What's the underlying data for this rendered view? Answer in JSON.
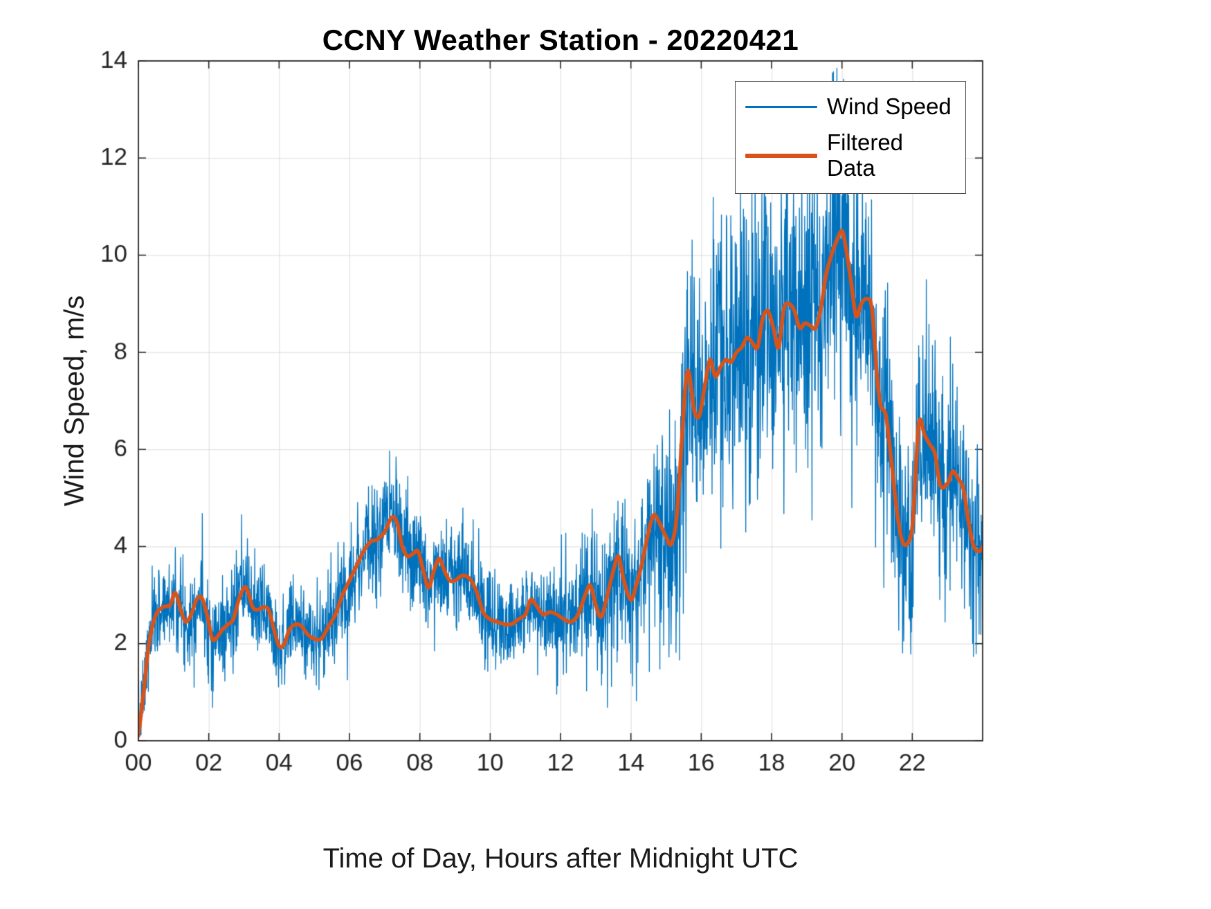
{
  "figure": {
    "title": "CCNY Weather Station - 20220421",
    "xlabel": "Time of Day, Hours after Midnight UTC",
    "ylabel": "Wind Speed, m/s"
  },
  "chart_data": {
    "type": "line",
    "title": "CCNY Weather Station - 20220421",
    "xlabel": "Time of Day, Hours after Midnight UTC",
    "ylabel": "Wind Speed, m/s",
    "xlim": [
      0,
      24
    ],
    "ylim": [
      0,
      14
    ],
    "grid": true,
    "legend_position": "northeast-inside",
    "xticks": {
      "values": [
        0,
        2,
        4,
        6,
        8,
        10,
        12,
        14,
        16,
        18,
        20,
        22
      ],
      "labels": [
        "00",
        "02",
        "04",
        "06",
        "08",
        "10",
        "12",
        "14",
        "16",
        "18",
        "20",
        "22"
      ]
    },
    "yticks": {
      "values": [
        0,
        2,
        4,
        6,
        8,
        10,
        12,
        14
      ],
      "labels": [
        "0",
        "2",
        "4",
        "6",
        "8",
        "10",
        "12",
        "14"
      ]
    },
    "series": [
      {
        "name": "Wind Speed",
        "color": "#0072BD",
        "line_width": 1.3,
        "style": "raw-noisy",
        "derivation": "filtered baseline plus gaussian noise envelope read from plot",
        "sample_interval_hours": 0.008333,
        "seed": 7,
        "noise_sd_keypoints": {
          "t": [
            0,
            1,
            2,
            3,
            4,
            5,
            6,
            7,
            8,
            9,
            10,
            11,
            12,
            12.8,
            13.5,
            14,
            14.7,
            15.3,
            15.7,
            16.5,
            17.5,
            18.5,
            19.5,
            20.5,
            21,
            21.5,
            22,
            23,
            24
          ],
          "sd": [
            0.4,
            0.5,
            0.55,
            0.5,
            0.42,
            0.45,
            0.55,
            0.55,
            0.55,
            0.5,
            0.45,
            0.5,
            0.5,
            0.65,
            0.8,
            0.9,
            1.0,
            1.2,
            1.4,
            1.5,
            1.6,
            1.5,
            1.7,
            1.5,
            1.3,
            1.1,
            1.2,
            1.1,
            0.9
          ]
        },
        "value_clip": [
          0.12,
          13.85
        ]
      },
      {
        "name": "Filtered Data",
        "color": "#D95319",
        "line_width": 5.5,
        "style": "smooth",
        "x": [
          0,
          0.15,
          0.3,
          0.5,
          0.7,
          0.9,
          1.05,
          1.2,
          1.35,
          1.5,
          1.65,
          1.8,
          1.95,
          2.1,
          2.25,
          2.4,
          2.55,
          2.7,
          2.85,
          3.0,
          3.1,
          3.25,
          3.4,
          3.55,
          3.7,
          3.85,
          4.0,
          4.15,
          4.3,
          4.5,
          4.65,
          4.8,
          5.0,
          5.2,
          5.4,
          5.6,
          5.8,
          6.0,
          6.2,
          6.4,
          6.6,
          6.8,
          7.0,
          7.2,
          7.35,
          7.5,
          7.65,
          7.8,
          7.95,
          8.1,
          8.25,
          8.4,
          8.55,
          8.7,
          8.85,
          9.0,
          9.2,
          9.4,
          9.6,
          9.8,
          10.0,
          10.2,
          10.4,
          10.6,
          10.8,
          11.0,
          11.15,
          11.3,
          11.5,
          11.7,
          11.9,
          12.1,
          12.3,
          12.5,
          12.7,
          12.85,
          13.0,
          13.15,
          13.3,
          13.5,
          13.65,
          13.8,
          14.0,
          14.15,
          14.3,
          14.5,
          14.65,
          14.8,
          15.0,
          15.15,
          15.3,
          15.45,
          15.55,
          15.65,
          15.8,
          15.95,
          16.1,
          16.25,
          16.4,
          16.55,
          16.7,
          16.85,
          17.0,
          17.15,
          17.3,
          17.45,
          17.6,
          17.75,
          17.9,
          18.05,
          18.2,
          18.35,
          18.5,
          18.65,
          18.8,
          18.95,
          19.1,
          19.25,
          19.4,
          19.55,
          19.7,
          19.85,
          20.0,
          20.1,
          20.25,
          20.4,
          20.55,
          20.7,
          20.85,
          21.0,
          21.1,
          21.25,
          21.4,
          21.55,
          21.7,
          21.85,
          22.0,
          22.1,
          22.2,
          22.35,
          22.5,
          22.65,
          22.8,
          23.0,
          23.15,
          23.3,
          23.45,
          23.6,
          23.75,
          23.9,
          24.0
        ],
        "y": [
          0.1,
          1.0,
          2.0,
          2.6,
          2.75,
          2.8,
          3.05,
          2.7,
          2.45,
          2.6,
          2.9,
          2.95,
          2.6,
          2.1,
          2.15,
          2.3,
          2.4,
          2.5,
          2.9,
          3.15,
          3.1,
          2.75,
          2.7,
          2.75,
          2.7,
          2.3,
          1.95,
          2.0,
          2.3,
          2.4,
          2.35,
          2.2,
          2.1,
          2.1,
          2.35,
          2.6,
          3.0,
          3.3,
          3.6,
          3.9,
          4.1,
          4.15,
          4.3,
          4.6,
          4.5,
          4.0,
          3.8,
          3.85,
          3.9,
          3.5,
          3.15,
          3.5,
          3.75,
          3.5,
          3.3,
          3.3,
          3.4,
          3.35,
          3.1,
          2.65,
          2.5,
          2.45,
          2.4,
          2.4,
          2.5,
          2.6,
          2.9,
          2.8,
          2.6,
          2.65,
          2.6,
          2.5,
          2.45,
          2.6,
          3.0,
          3.2,
          2.8,
          2.55,
          2.9,
          3.5,
          3.8,
          3.3,
          2.9,
          3.2,
          3.6,
          4.3,
          4.65,
          4.5,
          4.2,
          4.05,
          4.6,
          6.2,
          7.3,
          7.6,
          6.8,
          6.7,
          7.3,
          7.85,
          7.5,
          7.7,
          7.85,
          7.8,
          8.0,
          8.1,
          8.3,
          8.2,
          8.1,
          8.7,
          8.85,
          8.5,
          8.1,
          8.9,
          9.0,
          8.85,
          8.5,
          8.6,
          8.55,
          8.5,
          8.9,
          9.6,
          10.0,
          10.3,
          10.5,
          10.2,
          9.5,
          8.75,
          9.0,
          9.1,
          8.9,
          7.5,
          6.9,
          6.7,
          5.8,
          4.8,
          4.15,
          4.05,
          4.4,
          5.6,
          6.6,
          6.3,
          6.1,
          5.9,
          5.25,
          5.3,
          5.55,
          5.4,
          5.2,
          4.5,
          4.0,
          3.9,
          4.0
        ]
      }
    ],
    "axis_color": "#262626",
    "grid_color": "#dcdcdc",
    "tick_font_px": 35
  },
  "legend": {
    "items": [
      {
        "label": "Wind Speed"
      },
      {
        "label": "Filtered Data"
      }
    ]
  }
}
